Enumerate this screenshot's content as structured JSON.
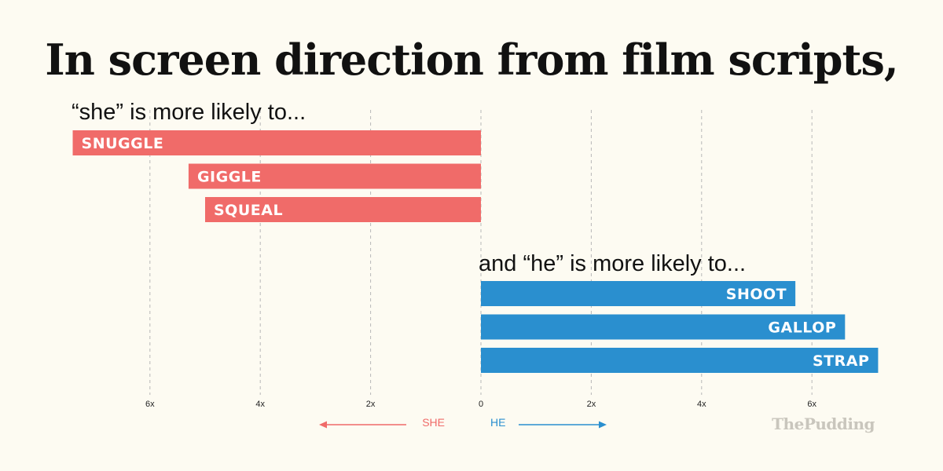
{
  "header": {
    "title": "In screen direction from film scripts,"
  },
  "brand": {
    "name": "ThePudding"
  },
  "colors": {
    "she": "#f06b69",
    "he": "#2a8fcf",
    "grid": "#b8b8b8",
    "background": "#fdfbf2"
  },
  "chart_data": {
    "type": "bar",
    "orientation": "horizontal",
    "xlim": [
      -8.7,
      8.7
    ],
    "grid": true,
    "x_ticks": [
      {
        "value": -6,
        "label": "6x"
      },
      {
        "value": -4,
        "label": "4x"
      },
      {
        "value": -2,
        "label": "2x"
      },
      {
        "value": 0,
        "label": "0"
      },
      {
        "value": 2,
        "label": "2x"
      },
      {
        "value": 4,
        "label": "4x"
      },
      {
        "value": 6,
        "label": "6x"
      }
    ],
    "direction_labels": {
      "she": "SHE",
      "he": "HE"
    },
    "series": [
      {
        "name": "she",
        "heading": "“she” is more likely to...",
        "side": "left",
        "categories": [
          "SNUGGLE",
          "GIGGLE",
          "SQUEAL"
        ],
        "values": [
          7.4,
          5.3,
          5.0
        ]
      },
      {
        "name": "he",
        "heading": "and “he” is more likely to...",
        "side": "right",
        "categories": [
          "SHOOT",
          "GALLOP",
          "STRAP"
        ],
        "values": [
          5.7,
          6.6,
          7.2
        ]
      }
    ]
  }
}
